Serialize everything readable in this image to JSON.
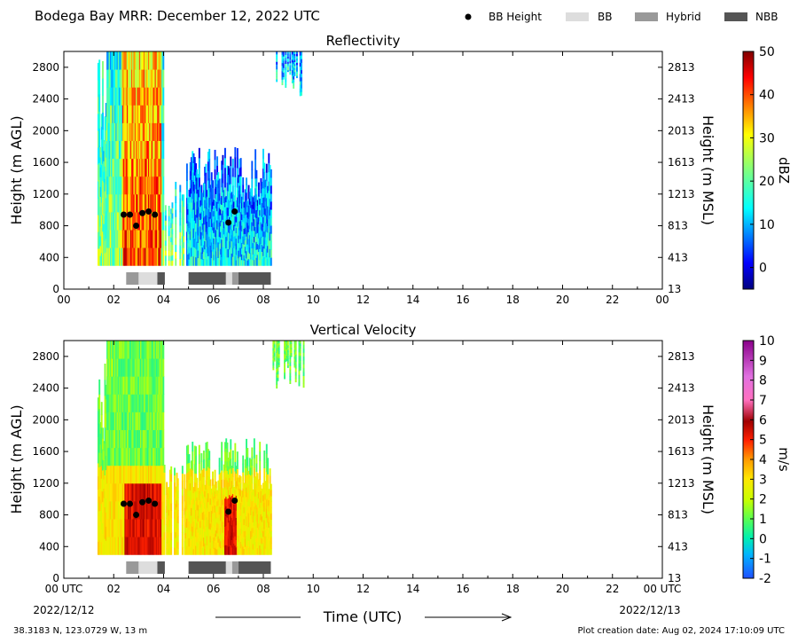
{
  "header": {
    "title": "Bodega Bay MRR:  December 12, 2022 UTC",
    "legend": [
      {
        "label": "BB Height",
        "kind": "marker",
        "color": "#000000"
      },
      {
        "label": "BB",
        "kind": "patch",
        "color": "#dddddd"
      },
      {
        "label": "Hybrid",
        "kind": "patch",
        "color": "#999999"
      },
      {
        "label": "NBB",
        "kind": "patch",
        "color": "#555555"
      }
    ]
  },
  "footer": {
    "location": "38.3183 N, 123.0729 W, 13 m",
    "creation": "Plot creation date: Aug 02, 2024 17:10:09 UTC",
    "xlabel": "Time (UTC)",
    "date_start": "2022/12/12",
    "date_end": "2022/12/13"
  },
  "chart_data": [
    {
      "type": "heatmap",
      "title": "Reflectivity",
      "xlabel": "",
      "ylabel": "Height (m AGL)",
      "ylabel_right": "Height (m MSL)",
      "x_ticks": [
        "00",
        "02",
        "04",
        "06",
        "08",
        "10",
        "12",
        "14",
        "16",
        "18",
        "20",
        "22",
        "00"
      ],
      "xlim_hours": [
        0,
        24
      ],
      "y_ticks": [
        0,
        400,
        800,
        1200,
        1600,
        2000,
        2400,
        2800
      ],
      "y_ticks_right": [
        13,
        413,
        813,
        1213,
        1613,
        2013,
        2413,
        2813
      ],
      "ylim": [
        0,
        3000
      ],
      "colorbar": {
        "label": "dBZ",
        "range": [
          -5,
          50
        ],
        "ticks": [
          0,
          10,
          20,
          30,
          40,
          50
        ],
        "colormap": "jet"
      },
      "bright_band_heights": [
        {
          "x": 2.4,
          "y": 940
        },
        {
          "x": 2.65,
          "y": 940
        },
        {
          "x": 2.9,
          "y": 800
        },
        {
          "x": 3.15,
          "y": 960
        },
        {
          "x": 3.4,
          "y": 980
        },
        {
          "x": 3.65,
          "y": 940
        },
        {
          "x": 6.6,
          "y": 840
        },
        {
          "x": 6.85,
          "y": 980
        }
      ],
      "rain_type_segments": [
        {
          "start": 2.5,
          "end": 3.0,
          "type": "Hybrid"
        },
        {
          "start": 3.0,
          "end": 3.75,
          "type": "BB"
        },
        {
          "start": 3.75,
          "end": 4.05,
          "type": "NBB"
        },
        {
          "start": 5.0,
          "end": 6.5,
          "type": "NBB"
        },
        {
          "start": 6.5,
          "end": 6.75,
          "type": "BB"
        },
        {
          "start": 6.75,
          "end": 7.0,
          "type": "Hybrid"
        },
        {
          "start": 7.0,
          "end": 8.3,
          "type": "NBB"
        }
      ]
    },
    {
      "type": "heatmap",
      "title": "Vertical Velocity",
      "xlabel": "Time (UTC)",
      "ylabel": "Height (m AGL)",
      "ylabel_right": "Height (m MSL)",
      "x_ticks": [
        "00 UTC",
        "02",
        "04",
        "06",
        "08",
        "10",
        "12",
        "14",
        "16",
        "18",
        "20",
        "22",
        "00 UTC"
      ],
      "xlim_hours": [
        0,
        24
      ],
      "y_ticks": [
        0,
        400,
        800,
        1200,
        1600,
        2000,
        2400,
        2800
      ],
      "y_ticks_right": [
        13,
        413,
        813,
        1213,
        1613,
        2013,
        2413,
        2813
      ],
      "ylim": [
        0,
        3000
      ],
      "colorbar": {
        "label": "m/s",
        "range": [
          -2,
          10
        ],
        "ticks": [
          -2,
          -1,
          0,
          1,
          2,
          3,
          4,
          5,
          6,
          7,
          8,
          9,
          10
        ],
        "colormap": "velocity"
      },
      "bright_band_heights": [
        {
          "x": 2.4,
          "y": 940
        },
        {
          "x": 2.65,
          "y": 940
        },
        {
          "x": 2.9,
          "y": 800
        },
        {
          "x": 3.15,
          "y": 960
        },
        {
          "x": 3.4,
          "y": 980
        },
        {
          "x": 3.65,
          "y": 940
        },
        {
          "x": 6.6,
          "y": 840
        },
        {
          "x": 6.85,
          "y": 980
        }
      ],
      "rain_type_segments": [
        {
          "start": 2.5,
          "end": 3.0,
          "type": "Hybrid"
        },
        {
          "start": 3.0,
          "end": 3.75,
          "type": "BB"
        },
        {
          "start": 3.75,
          "end": 4.05,
          "type": "NBB"
        },
        {
          "start": 5.0,
          "end": 6.5,
          "type": "NBB"
        },
        {
          "start": 6.5,
          "end": 6.75,
          "type": "BB"
        },
        {
          "start": 6.75,
          "end": 7.0,
          "type": "Hybrid"
        },
        {
          "start": 7.0,
          "end": 8.3,
          "type": "NBB"
        }
      ]
    }
  ]
}
